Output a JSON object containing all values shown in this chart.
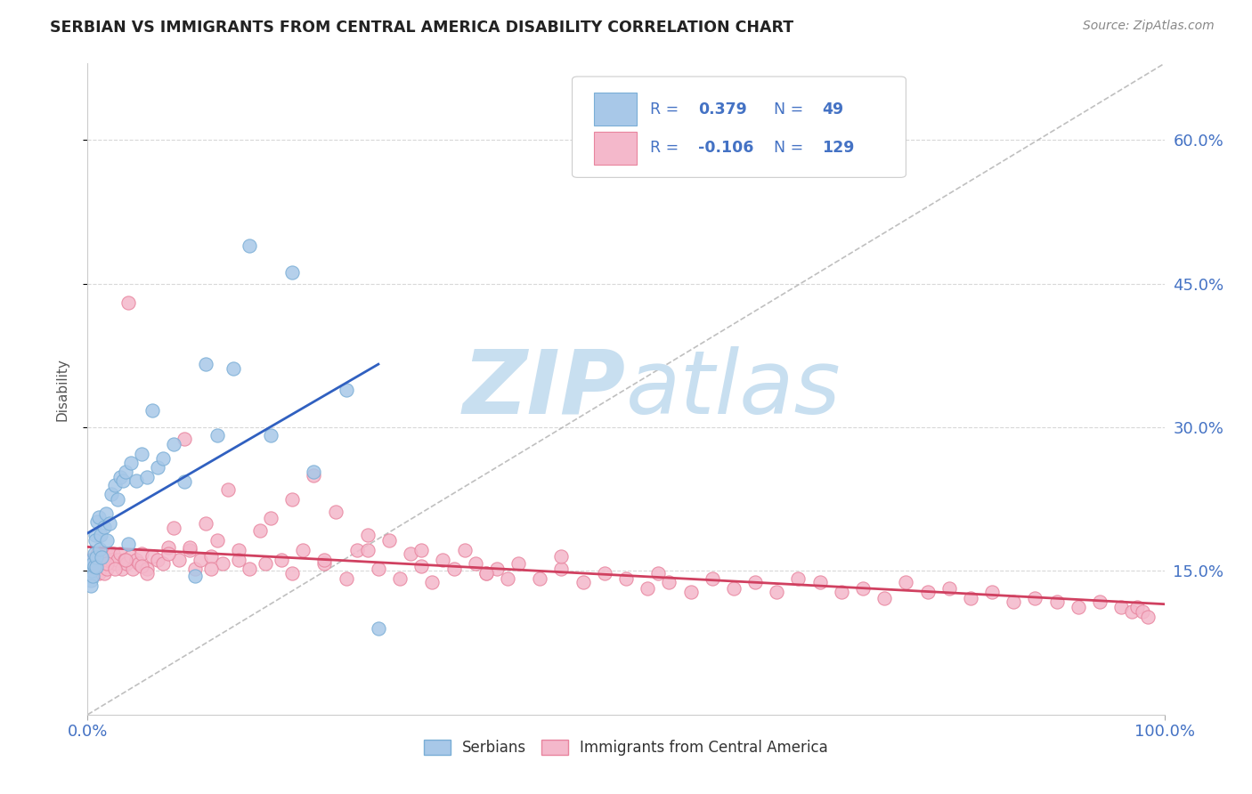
{
  "title": "SERBIAN VS IMMIGRANTS FROM CENTRAL AMERICA DISABILITY CORRELATION CHART",
  "source": "Source: ZipAtlas.com",
  "ylabel": "Disability",
  "y_ticks": [
    0.15,
    0.3,
    0.45,
    0.6
  ],
  "y_tick_labels": [
    "15.0%",
    "30.0%",
    "45.0%",
    "60.0%"
  ],
  "x_lim": [
    0.0,
    1.0
  ],
  "y_lim": [
    0.0,
    0.68
  ],
  "x_tick_left": "0.0%",
  "x_tick_right": "100.0%",
  "series1": {
    "label": "Serbians",
    "R": 0.379,
    "N": 49,
    "face_color": "#a8c8e8",
    "edge_color": "#7aaed6",
    "x": [
      0.001,
      0.002,
      0.003,
      0.003,
      0.004,
      0.004,
      0.005,
      0.005,
      0.006,
      0.006,
      0.007,
      0.007,
      0.008,
      0.008,
      0.009,
      0.01,
      0.011,
      0.012,
      0.013,
      0.015,
      0.017,
      0.018,
      0.02,
      0.022,
      0.025,
      0.028,
      0.03,
      0.033,
      0.035,
      0.038,
      0.04,
      0.045,
      0.05,
      0.055,
      0.06,
      0.065,
      0.07,
      0.08,
      0.09,
      0.1,
      0.11,
      0.12,
      0.135,
      0.15,
      0.17,
      0.19,
      0.21,
      0.24,
      0.27
    ],
    "y": [
      0.145,
      0.15,
      0.14,
      0.135,
      0.15,
      0.162,
      0.145,
      0.158,
      0.155,
      0.168,
      0.188,
      0.182,
      0.164,
      0.154,
      0.202,
      0.206,
      0.173,
      0.188,
      0.164,
      0.196,
      0.21,
      0.182,
      0.2,
      0.23,
      0.24,
      0.225,
      0.248,
      0.244,
      0.254,
      0.178,
      0.263,
      0.244,
      0.272,
      0.248,
      0.318,
      0.258,
      0.268,
      0.282,
      0.243,
      0.145,
      0.366,
      0.292,
      0.361,
      0.49,
      0.292,
      0.462,
      0.254,
      0.339,
      0.09
    ]
  },
  "series2": {
    "label": "Immigrants from Central America",
    "R": -0.106,
    "N": 129,
    "face_color": "#f4b8cb",
    "edge_color": "#e8849e",
    "x": [
      0.001,
      0.002,
      0.003,
      0.004,
      0.005,
      0.006,
      0.007,
      0.008,
      0.009,
      0.01,
      0.011,
      0.012,
      0.013,
      0.014,
      0.015,
      0.016,
      0.017,
      0.018,
      0.019,
      0.02,
      0.022,
      0.024,
      0.026,
      0.028,
      0.03,
      0.032,
      0.034,
      0.036,
      0.038,
      0.04,
      0.042,
      0.045,
      0.048,
      0.05,
      0.055,
      0.06,
      0.065,
      0.07,
      0.075,
      0.08,
      0.085,
      0.09,
      0.095,
      0.1,
      0.105,
      0.11,
      0.115,
      0.12,
      0.125,
      0.13,
      0.14,
      0.15,
      0.16,
      0.17,
      0.18,
      0.19,
      0.2,
      0.21,
      0.22,
      0.23,
      0.24,
      0.25,
      0.26,
      0.27,
      0.28,
      0.29,
      0.3,
      0.31,
      0.32,
      0.33,
      0.34,
      0.35,
      0.36,
      0.37,
      0.38,
      0.39,
      0.4,
      0.42,
      0.44,
      0.46,
      0.48,
      0.5,
      0.52,
      0.54,
      0.56,
      0.58,
      0.6,
      0.62,
      0.64,
      0.66,
      0.68,
      0.7,
      0.72,
      0.74,
      0.76,
      0.78,
      0.8,
      0.82,
      0.84,
      0.86,
      0.88,
      0.9,
      0.92,
      0.94,
      0.96,
      0.97,
      0.975,
      0.98,
      0.985,
      0.05,
      0.003,
      0.007,
      0.012,
      0.018,
      0.025,
      0.035,
      0.055,
      0.075,
      0.095,
      0.115,
      0.14,
      0.165,
      0.19,
      0.22,
      0.26,
      0.31,
      0.37,
      0.44,
      0.53
    ],
    "y": [
      0.155,
      0.162,
      0.148,
      0.158,
      0.162,
      0.148,
      0.162,
      0.152,
      0.168,
      0.148,
      0.162,
      0.168,
      0.158,
      0.165,
      0.148,
      0.162,
      0.168,
      0.152,
      0.162,
      0.168,
      0.162,
      0.168,
      0.158,
      0.162,
      0.168,
      0.152,
      0.162,
      0.158,
      0.43,
      0.165,
      0.152,
      0.162,
      0.158,
      0.168,
      0.152,
      0.165,
      0.162,
      0.158,
      0.175,
      0.195,
      0.162,
      0.288,
      0.172,
      0.152,
      0.162,
      0.2,
      0.165,
      0.182,
      0.158,
      0.235,
      0.172,
      0.152,
      0.192,
      0.205,
      0.162,
      0.225,
      0.172,
      0.25,
      0.158,
      0.212,
      0.142,
      0.172,
      0.188,
      0.152,
      0.182,
      0.142,
      0.168,
      0.172,
      0.138,
      0.162,
      0.152,
      0.172,
      0.158,
      0.148,
      0.152,
      0.142,
      0.158,
      0.142,
      0.152,
      0.138,
      0.148,
      0.142,
      0.132,
      0.138,
      0.128,
      0.142,
      0.132,
      0.138,
      0.128,
      0.142,
      0.138,
      0.128,
      0.132,
      0.122,
      0.138,
      0.128,
      0.132,
      0.122,
      0.128,
      0.118,
      0.122,
      0.118,
      0.112,
      0.118,
      0.112,
      0.108,
      0.112,
      0.108,
      0.102,
      0.155,
      0.16,
      0.155,
      0.165,
      0.158,
      0.152,
      0.162,
      0.148,
      0.168,
      0.175,
      0.152,
      0.162,
      0.158,
      0.148,
      0.162,
      0.172,
      0.155,
      0.148,
      0.165,
      0.148
    ]
  },
  "trend1_color": "#3060c0",
  "trend2_color": "#d04060",
  "diag_color": "#b0b0b0",
  "watermark_zip": "ZIP",
  "watermark_atlas": "atlas",
  "watermark_color": "#c8dff0",
  "bg_color": "#ffffff",
  "grid_color": "#d8d8d8",
  "title_color": "#222222",
  "axis_label_color": "#4472c4",
  "legend_color": "#4472c4"
}
